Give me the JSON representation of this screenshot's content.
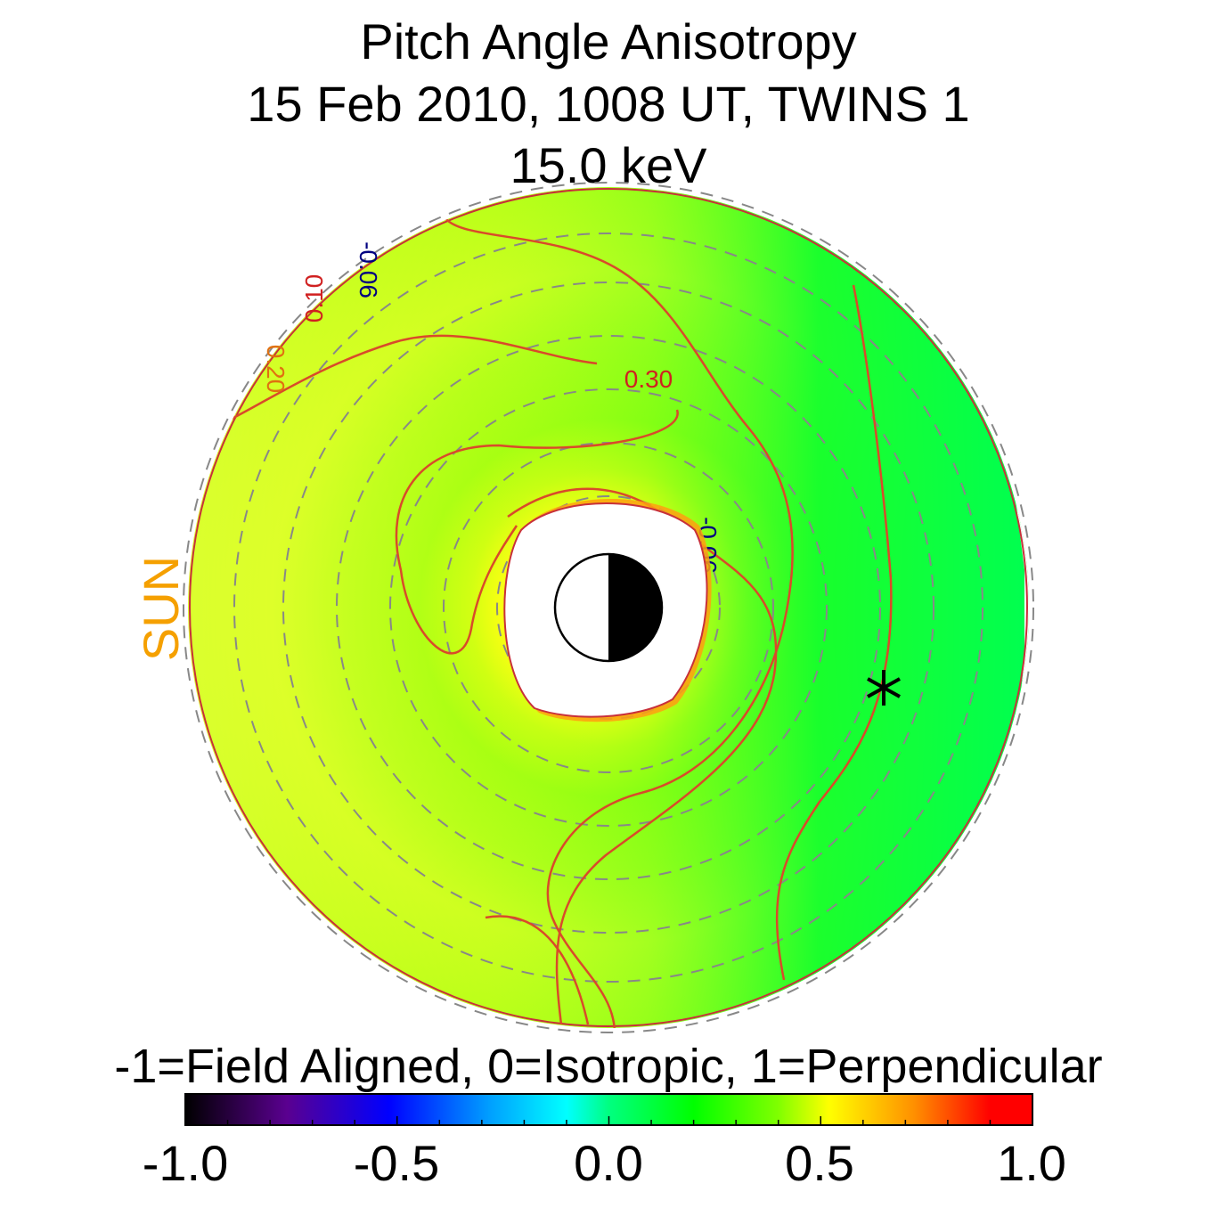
{
  "chart_data": {
    "type": "heatmap",
    "title": [
      "Pitch Angle Anisotropy",
      "15 Feb 2010, 1008 UT,  TWINS 1",
      "15.0 keV"
    ],
    "sun_label": "SUN",
    "colorbar": {
      "label": "-1=Field Aligned, 0=Isotropic, 1=Perpendicular",
      "range": [
        -1.0,
        1.0
      ],
      "ticks": [
        "-1.0",
        "-0.5",
        "0.0",
        "0.5",
        "1.0"
      ],
      "colors": [
        "#000000",
        "#5a0090",
        "#0000ff",
        "#00a0ff",
        "#00ffff",
        "#00ff80",
        "#00ff00",
        "#80ff00",
        "#ffff00",
        "#ff9000",
        "#ff0000"
      ]
    },
    "contour_labels": [
      {
        "text": "0.30",
        "color": "#d02020"
      },
      {
        "text": "0.10",
        "color": "#d02020"
      },
      {
        "text": "0.20",
        "color": "#e07010"
      },
      {
        "text": "-0.06",
        "color": "#000080"
      },
      {
        "text": "-0.06",
        "color": "#000080"
      }
    ],
    "grid": "dashed concentric circles",
    "colors": {
      "green": "#00ff00",
      "yellow": "#f0ff20",
      "contour": "#d94a2a",
      "sun": "#f5a000",
      "grid": "#888888"
    }
  }
}
